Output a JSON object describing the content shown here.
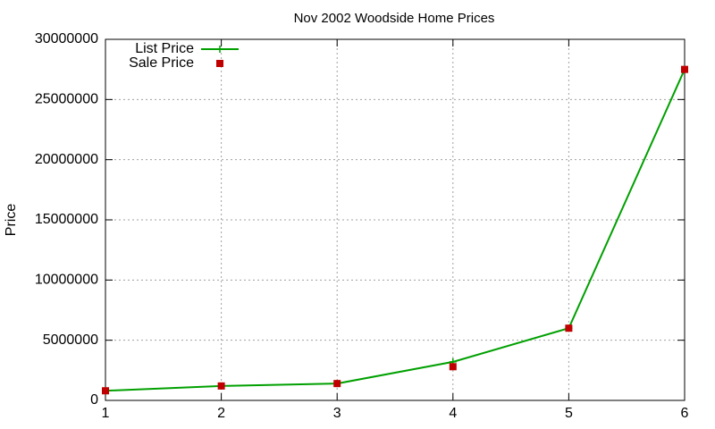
{
  "chart_data": {
    "type": "line",
    "title": "Nov 2002 Woodside Home Prices",
    "y_label": "Price",
    "x": [
      1,
      2,
      3,
      4,
      5,
      6
    ],
    "series": [
      {
        "name": "List Price",
        "color": "#00a000",
        "style": "linespoints",
        "values": [
          800000,
          1200000,
          1400000,
          3200000,
          6000000,
          27500000
        ]
      },
      {
        "name": "Sale Price",
        "color": "#c00000",
        "style": "points",
        "values": [
          800000,
          1200000,
          1400000,
          2800000,
          6000000,
          27500000
        ]
      }
    ],
    "xlim": [
      1,
      6
    ],
    "xticks": [
      1,
      2,
      3,
      4,
      5,
      6
    ],
    "ylim": [
      0,
      30000000
    ],
    "yticks": [
      0,
      5000000,
      10000000,
      15000000,
      20000000,
      25000000,
      30000000
    ],
    "grid": true,
    "legend": "top left"
  }
}
